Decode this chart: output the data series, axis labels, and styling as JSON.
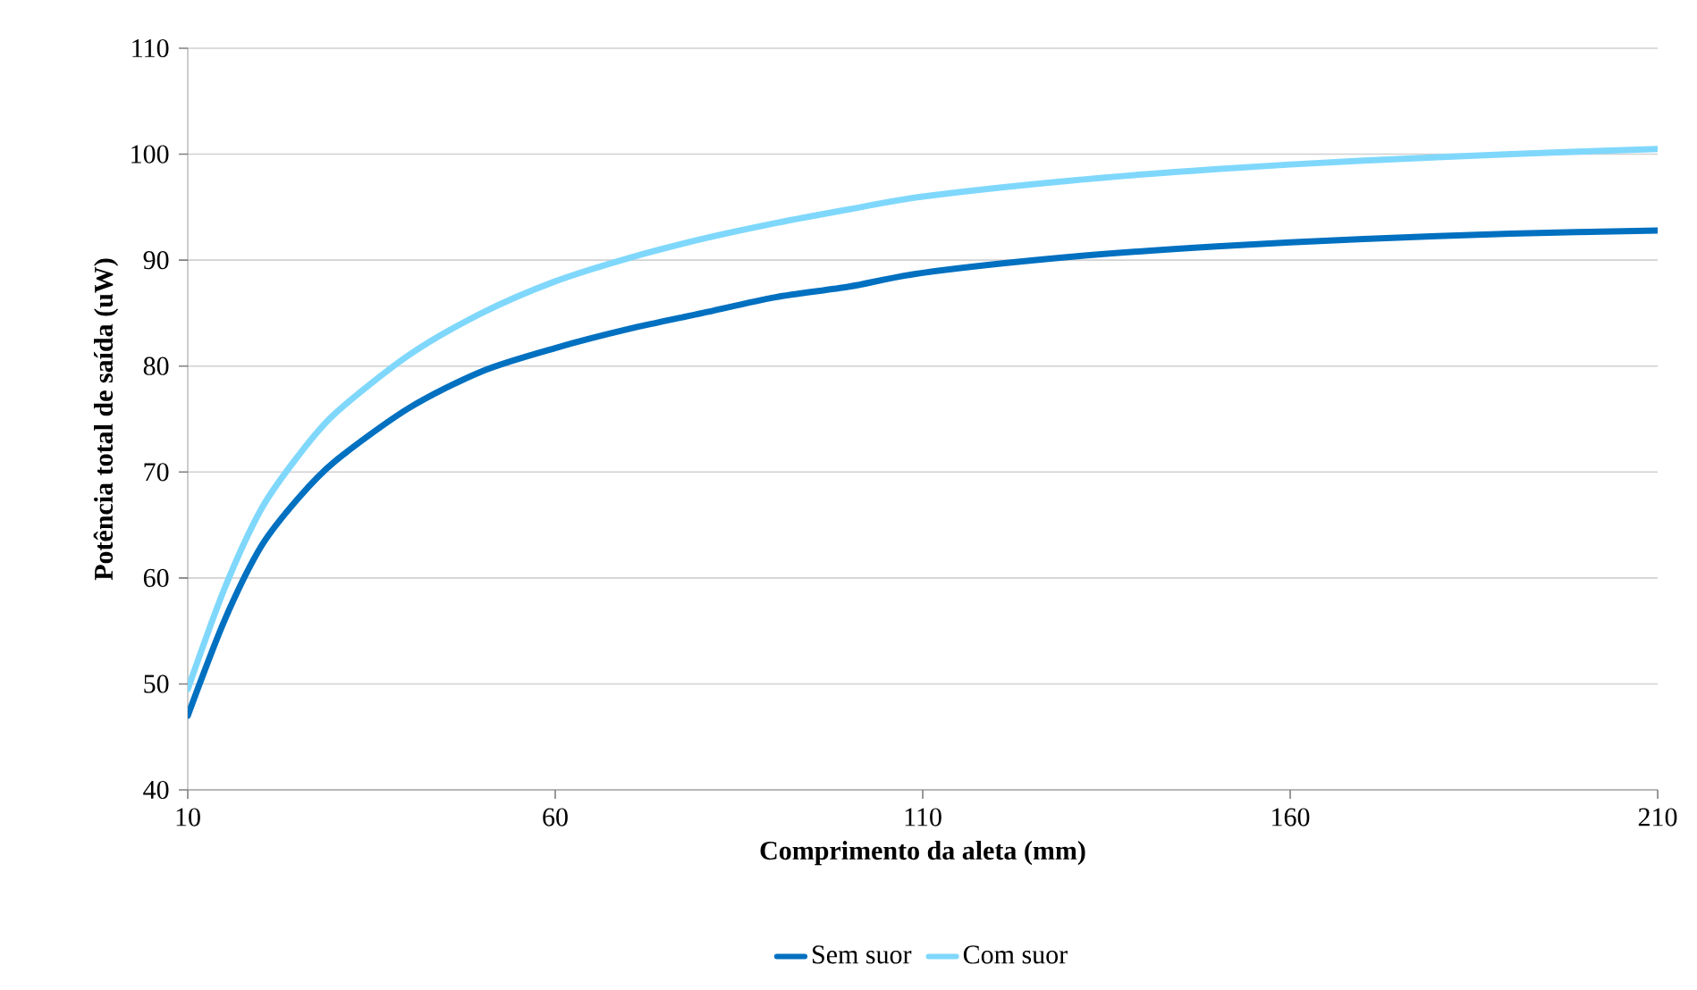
{
  "chart_data": {
    "type": "line",
    "xlabel": "Comprimento da aleta (mm)",
    "ylabel": "Potência total de saída (uW)",
    "x": [
      10,
      15,
      20,
      25,
      30,
      40,
      50,
      60,
      70,
      80,
      90,
      100,
      110,
      130,
      150,
      170,
      190,
      210
    ],
    "series": [
      {
        "name": "Sem suor",
        "color": "#0070c0",
        "values": [
          47,
          56,
          63,
          67.5,
          71,
          76,
          79.5,
          81.7,
          83.5,
          85,
          86.5,
          87.5,
          88.8,
          90.3,
          91.3,
          92,
          92.5,
          92.8
        ]
      },
      {
        "name": "Com suor",
        "color": "#7fd8fc",
        "values": [
          49.5,
          59,
          66.5,
          71.5,
          75.5,
          81,
          85,
          88,
          90.2,
          92,
          93.5,
          94.8,
          96,
          97.5,
          98.6,
          99.4,
          100,
          100.5
        ]
      }
    ],
    "xlim": [
      10,
      210
    ],
    "xticks": [
      10,
      60,
      110,
      160,
      210
    ],
    "ylim": [
      40,
      110
    ],
    "yticks": [
      40,
      50,
      60,
      70,
      80,
      90,
      100,
      110
    ],
    "grid": "y",
    "legend": "bottom",
    "marker": "none",
    "line_style": "solid"
  }
}
